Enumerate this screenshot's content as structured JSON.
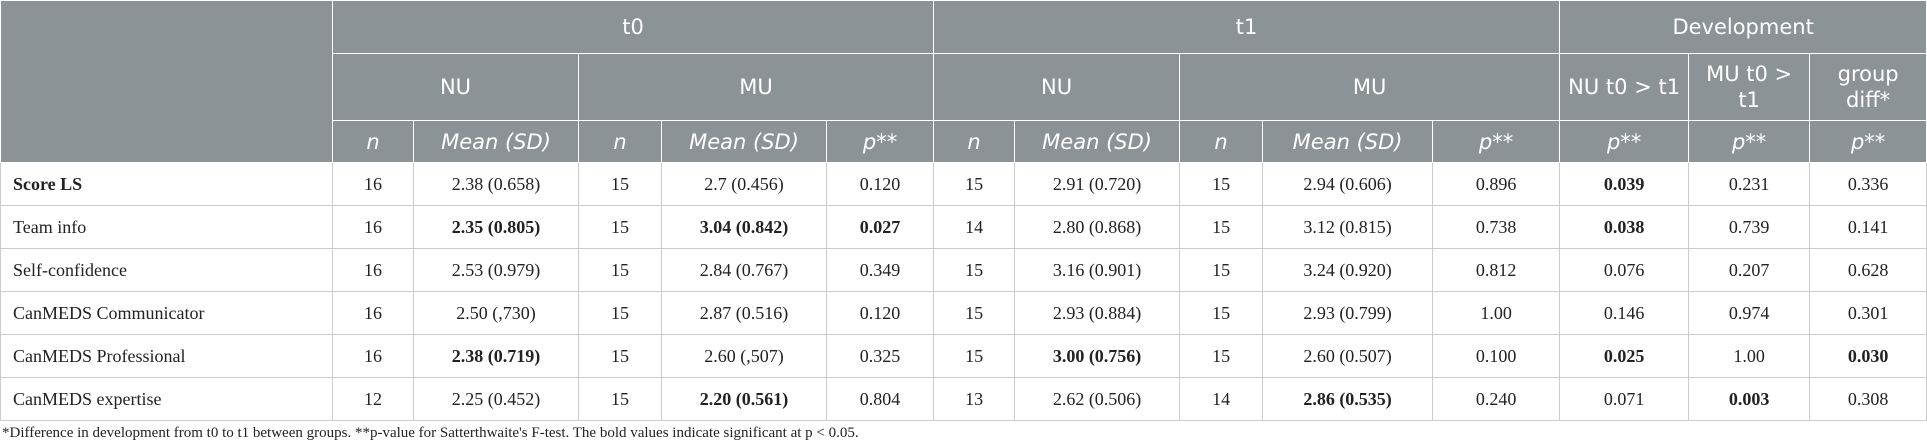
{
  "table": {
    "header": {
      "groups": [
        "t0",
        "t1",
        "Development"
      ],
      "subgroups": [
        "NU",
        "MU",
        "NU",
        "MU",
        "NU t0 > t1",
        "MU t0 > t1",
        "group diff*"
      ],
      "columns": [
        "n",
        "Mean (SD)",
        "n",
        "Mean (SD)",
        "p**",
        "n",
        "Mean (SD)",
        "n",
        "Mean (SD)",
        "p**",
        "p**",
        "p**",
        "p**"
      ]
    },
    "rows": [
      {
        "cells": [
          "Score LS",
          "16",
          "2.38 (0.658)",
          "15",
          "2.7 (0.456)",
          "0.120",
          "15",
          "2.91 (0.720)",
          "15",
          "2.94 (0.606)",
          "0.896",
          "0.039",
          "0.231",
          "0.336"
        ],
        "bold": [
          0,
          11
        ]
      },
      {
        "cells": [
          "Team info",
          "16",
          "2.35 (0.805)",
          "15",
          "3.04 (0.842)",
          "0.027",
          "14",
          "2.80 (0.868)",
          "15",
          "3.12 (0.815)",
          "0.738",
          "0.038",
          "0.739",
          "0.141"
        ],
        "bold": [
          2,
          4,
          5,
          11
        ]
      },
      {
        "cells": [
          "Self-confidence",
          "16",
          "2.53 (0.979)",
          "15",
          "2.84 (0.767)",
          "0.349",
          "15",
          "3.16 (0.901)",
          "15",
          "3.24 (0.920)",
          "0.812",
          "0.076",
          "0.207",
          "0.628"
        ],
        "bold": []
      },
      {
        "cells": [
          "CanMEDS Communicator",
          "16",
          "2.50 (,730)",
          "15",
          "2.87 (0.516)",
          "0.120",
          "15",
          "2.93 (0.884)",
          "15",
          "2.93 (0.799)",
          "1.00",
          "0.146",
          "0.974",
          "0.301"
        ],
        "bold": []
      },
      {
        "cells": [
          "CanMEDS Professional",
          "16",
          "2.38 (0.719)",
          "15",
          "2.60 (,507)",
          "0.325",
          "15",
          "3.00 (0.756)",
          "15",
          "2.60 (0.507)",
          "0.100",
          "0.025",
          "1.00",
          "0.030"
        ],
        "bold": [
          2,
          7,
          11,
          13
        ]
      },
      {
        "cells": [
          "CanMEDS expertise",
          "12",
          "2.25 (0.452)",
          "15",
          "2.20 (0.561)",
          "0.804",
          "13",
          "2.62 (0.506)",
          "14",
          "2.86 (0.535)",
          "0.240",
          "0.071",
          "0.003",
          "0.308"
        ],
        "bold": [
          4,
          9,
          12
        ]
      }
    ],
    "footnote": "*Difference in development from t0 to t1 between groups. **p-value for Satterthwaite's F-test. The bold values indicate significant at p < 0.05."
  }
}
